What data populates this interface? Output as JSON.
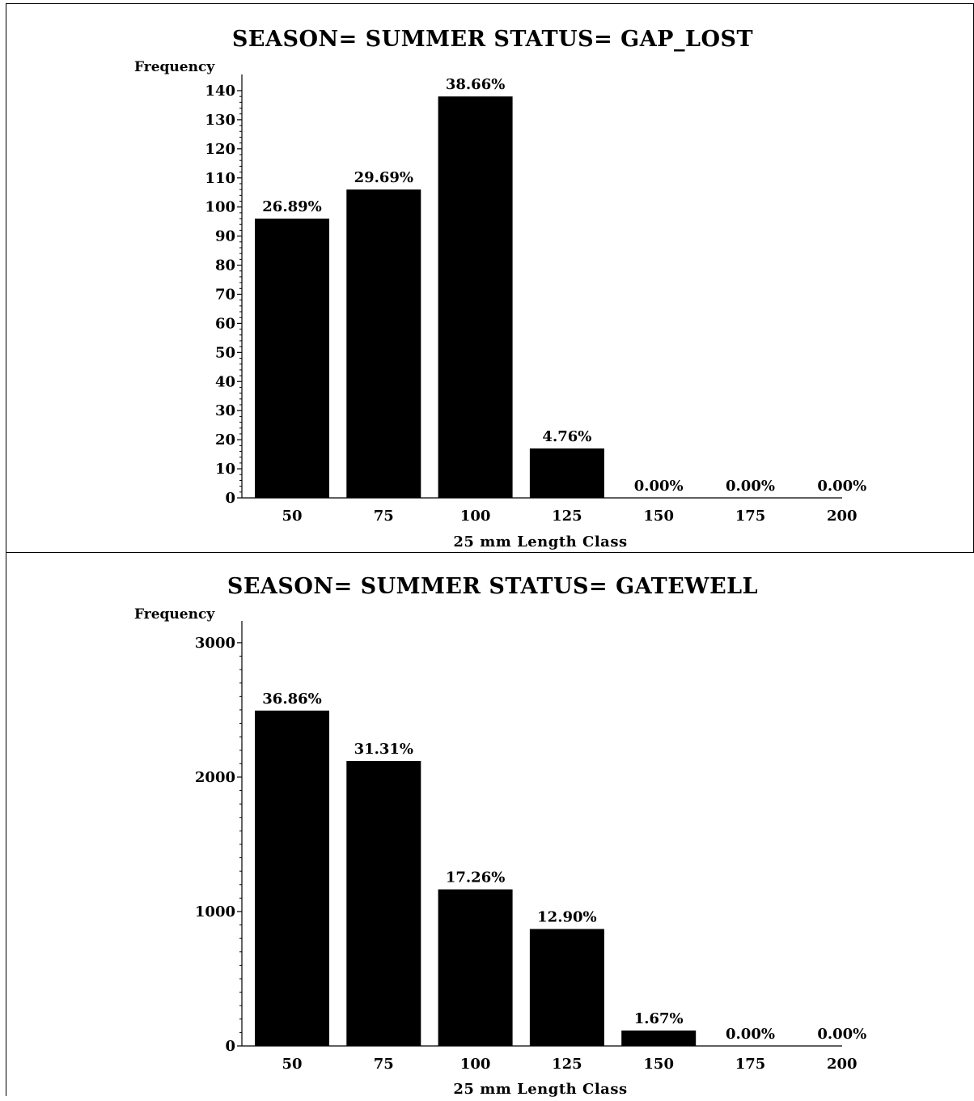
{
  "chart_data": [
    {
      "type": "bar",
      "title": "SEASON= SUMMER  STATUS= GAP_LOST",
      "ylabel": "Frequency",
      "xlabel": "25  mm  Length  Class",
      "categories": [
        "50",
        "75",
        "100",
        "125",
        "150",
        "175",
        "200"
      ],
      "values": [
        96,
        106,
        138,
        17,
        0,
        0,
        0
      ],
      "data_labels": [
        "26.89%",
        "29.69%",
        "38.66%",
        "4.76%",
        "0.00%",
        "0.00%",
        "0.00%"
      ],
      "ylim": [
        0,
        145
      ],
      "yticks": [
        0,
        10,
        20,
        30,
        40,
        50,
        60,
        70,
        80,
        90,
        100,
        110,
        120,
        130,
        140
      ],
      "bar_color": "#000000"
    },
    {
      "type": "bar",
      "title": "SEASON= SUMMER  STATUS= GATEWELL",
      "ylabel": "Frequency",
      "xlabel": "25  mm  Length  Class",
      "categories": [
        "50",
        "75",
        "100",
        "125",
        "150",
        "175",
        "200"
      ],
      "values": [
        2495,
        2120,
        1165,
        870,
        115,
        0,
        0
      ],
      "data_labels": [
        "36.86%",
        "31.31%",
        "17.26%",
        "12.90%",
        "1.67%",
        "0.00%",
        "0.00%"
      ],
      "ylim": [
        0,
        3150
      ],
      "yticks": [
        0,
        1000,
        2000,
        3000
      ],
      "bar_color": "#000000"
    }
  ]
}
